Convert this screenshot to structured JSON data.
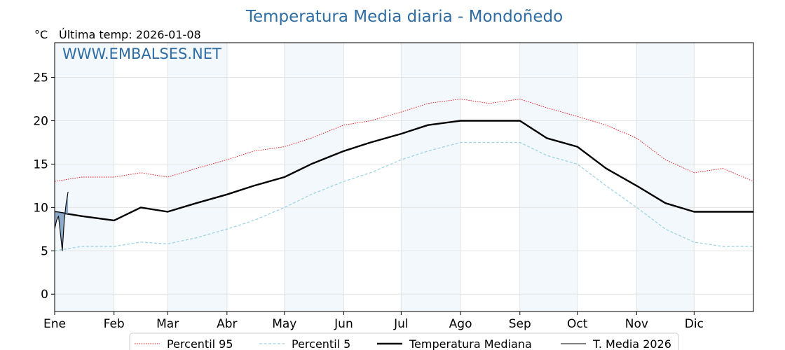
{
  "chart_data": {
    "type": "line",
    "title": "Temperatura Media diaria - Mondoñedo",
    "unit_label": "°C",
    "subtitle": "Última temp: 2026-01-08",
    "watermark": "WWW.EMBALSES.NET",
    "xlabel": "",
    "ylabel": "",
    "x_ticks": [
      "Ene",
      "Feb",
      "Mar",
      "Abr",
      "May",
      "Jun",
      "Jul",
      "Ago",
      "Sep",
      "Oct",
      "Nov",
      "Dic"
    ],
    "x_tick_days": [
      1,
      32,
      60,
      91,
      121,
      152,
      182,
      213,
      244,
      274,
      305,
      335
    ],
    "xlim": [
      1,
      366
    ],
    "ylim": [
      -2,
      29
    ],
    "y_ticks": [
      0,
      5,
      10,
      15,
      20,
      25
    ],
    "grid": true,
    "shaded_month_bands": [
      "Ene",
      "Mar",
      "May",
      "Jul",
      "Sep",
      "Nov"
    ],
    "legend_position": "bottom-center",
    "series": [
      {
        "name": "Percentil 95",
        "color": "#e31a1c",
        "style": "dotted",
        "x": [
          1,
          15,
          32,
          46,
          60,
          75,
          91,
          105,
          121,
          135,
          152,
          166,
          182,
          196,
          213,
          228,
          244,
          258,
          274,
          289,
          305,
          320,
          335,
          350,
          366
        ],
        "values": [
          13.0,
          13.5,
          13.5,
          14.0,
          13.5,
          14.5,
          15.5,
          16.5,
          17.0,
          18.0,
          19.5,
          20.0,
          21.0,
          22.0,
          22.5,
          22.0,
          22.5,
          21.5,
          20.5,
          19.5,
          18.0,
          15.5,
          14.0,
          14.5,
          13.0
        ]
      },
      {
        "name": "Percentil 5",
        "color": "#9fd4e4",
        "style": "dashed",
        "x": [
          1,
          15,
          32,
          46,
          60,
          75,
          91,
          105,
          121,
          135,
          152,
          166,
          182,
          196,
          213,
          228,
          244,
          258,
          274,
          289,
          305,
          320,
          335,
          350,
          366
        ],
        "values": [
          5.0,
          5.5,
          5.5,
          6.0,
          5.8,
          6.5,
          7.5,
          8.5,
          10.0,
          11.5,
          13.0,
          14.0,
          15.5,
          16.5,
          17.5,
          17.5,
          17.5,
          16.0,
          15.0,
          12.5,
          10.0,
          7.5,
          6.0,
          5.5,
          5.5
        ]
      },
      {
        "name": "Temperatura Mediana",
        "color": "#000000",
        "style": "solid-thick",
        "x": [
          1,
          15,
          32,
          46,
          60,
          75,
          91,
          105,
          121,
          135,
          152,
          166,
          182,
          196,
          213,
          228,
          244,
          258,
          274,
          289,
          305,
          320,
          335,
          350,
          366
        ],
        "values": [
          9.5,
          9.0,
          8.5,
          10.0,
          9.5,
          10.5,
          11.5,
          12.5,
          13.5,
          15.0,
          16.5,
          17.5,
          18.5,
          19.5,
          20.0,
          20.0,
          20.0,
          18.0,
          17.0,
          14.5,
          12.5,
          10.5,
          9.5,
          9.5,
          9.5
        ]
      },
      {
        "name": "T. Media 2026",
        "color": "#000000",
        "style": "solid-thin",
        "fill": "#7a9cc0",
        "x": [
          1,
          2,
          3,
          4,
          5,
          6,
          7,
          8
        ],
        "values": [
          7.5,
          8.5,
          9.0,
          7.0,
          5.0,
          8.5,
          10.5,
          11.8
        ]
      }
    ]
  }
}
